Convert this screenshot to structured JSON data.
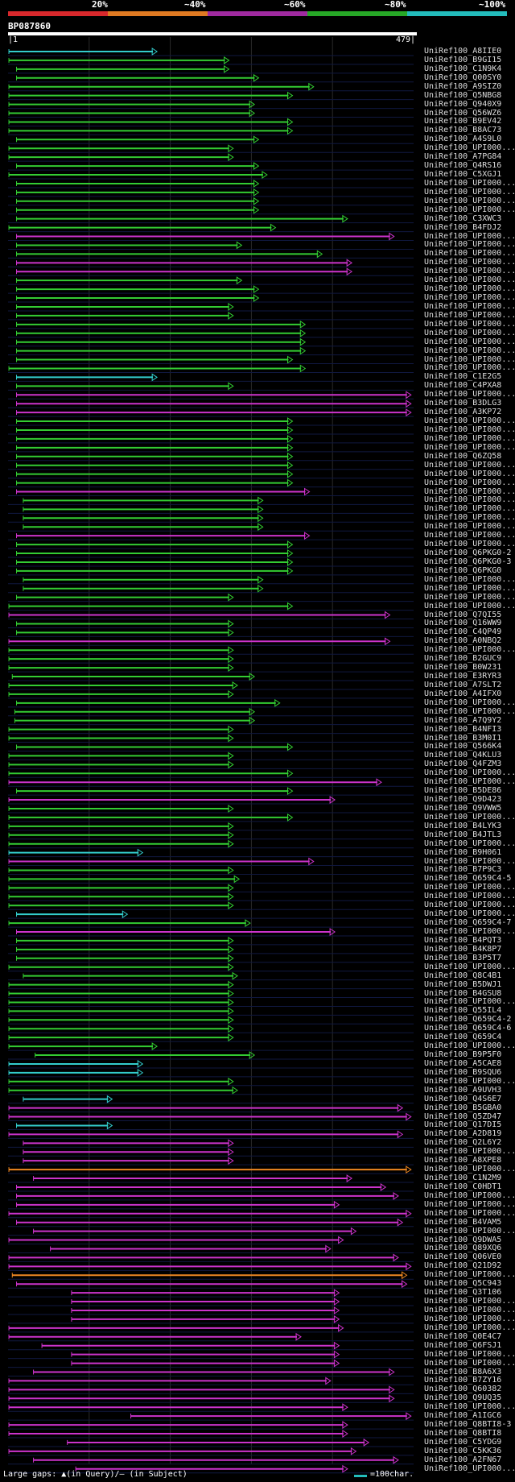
{
  "legend": {
    "labels": [
      "20%",
      "~40%",
      "~60%",
      "~80%",
      "~100%"
    ],
    "colors": [
      "#d8282c",
      "#e07a22",
      "#a02aa0",
      "#27a827",
      "#23bcbc"
    ]
  },
  "query": {
    "name": "BP087860",
    "start_label": "|1",
    "end_label": "479|",
    "length": 479
  },
  "footer": {
    "gaps_text": "Large gaps: ▲(in Query)/– (in Subject)",
    "scale_text": "=100char.",
    "scale_color": "#23bcbc"
  },
  "hits": [
    {
      "name": "UniRef100_A8IIE0",
      "start": 1,
      "end": 175,
      "color": "cyan"
    },
    {
      "name": "UniRef100_B9GI15",
      "start": 1,
      "end": 260,
      "color": "green"
    },
    {
      "name": "UniRef100_C1N9K4",
      "start": 10,
      "end": 260,
      "color": "green"
    },
    {
      "name": "UniRef100_Q00SY0",
      "start": 10,
      "end": 295,
      "color": "green"
    },
    {
      "name": "UniRef100_A9SIZ0",
      "start": 1,
      "end": 360,
      "color": "green"
    },
    {
      "name": "UniRef100_Q5NBG8",
      "start": 1,
      "end": 335,
      "color": "green"
    },
    {
      "name": "UniRef100_Q940X9",
      "start": 1,
      "end": 290,
      "color": "green"
    },
    {
      "name": "UniRef100_Q56WZ6",
      "start": 1,
      "end": 290,
      "color": "green"
    },
    {
      "name": "UniRef100_B9EV42",
      "start": 1,
      "end": 335,
      "color": "green"
    },
    {
      "name": "UniRef100_B8AC73",
      "start": 1,
      "end": 335,
      "color": "green"
    },
    {
      "name": "UniRef100_A4S9L0",
      "start": 10,
      "end": 295,
      "color": "green"
    },
    {
      "name": "UniRef100_UPI000...",
      "start": 1,
      "end": 265,
      "color": "green"
    },
    {
      "name": "UniRef100_A7PG84",
      "start": 1,
      "end": 265,
      "color": "green"
    },
    {
      "name": "UniRef100_Q4RS16",
      "start": 10,
      "end": 295,
      "color": "green"
    },
    {
      "name": "UniRef100_C5XGJ1",
      "start": 1,
      "end": 305,
      "color": "green"
    },
    {
      "name": "UniRef100_UPI000...",
      "start": 10,
      "end": 295,
      "color": "green"
    },
    {
      "name": "UniRef100_UPI000...",
      "start": 10,
      "end": 295,
      "color": "green"
    },
    {
      "name": "UniRef100_UPI000...",
      "start": 10,
      "end": 295,
      "color": "green"
    },
    {
      "name": "UniRef100_UPI000...",
      "start": 10,
      "end": 295,
      "color": "green"
    },
    {
      "name": "UniRef100_C3XWC3",
      "start": 10,
      "end": 400,
      "color": "green"
    },
    {
      "name": "UniRef100_B4FDJ2",
      "start": 1,
      "end": 315,
      "color": "green"
    },
    {
      "name": "UniRef100_UPI000...",
      "start": 10,
      "end": 455,
      "color": "magenta"
    },
    {
      "name": "UniRef100_UPI000...",
      "start": 10,
      "end": 275,
      "color": "green"
    },
    {
      "name": "UniRef100_UPI000...",
      "start": 10,
      "end": 370,
      "color": "green"
    },
    {
      "name": "UniRef100_UPI000...",
      "start": 10,
      "end": 405,
      "color": "magenta"
    },
    {
      "name": "UniRef100_UPI000...",
      "start": 10,
      "end": 405,
      "color": "magenta"
    },
    {
      "name": "UniRef100_UPI000...",
      "start": 10,
      "end": 275,
      "color": "green"
    },
    {
      "name": "UniRef100_UPI000...",
      "start": 10,
      "end": 295,
      "color": "green"
    },
    {
      "name": "UniRef100_UPI000...",
      "start": 10,
      "end": 295,
      "color": "green"
    },
    {
      "name": "UniRef100_UPI000...",
      "start": 10,
      "end": 265,
      "color": "green"
    },
    {
      "name": "UniRef100_UPI000...",
      "start": 10,
      "end": 265,
      "color": "green"
    },
    {
      "name": "UniRef100_UPI000...",
      "start": 10,
      "end": 350,
      "color": "green"
    },
    {
      "name": "UniRef100_UPI000...",
      "start": 10,
      "end": 350,
      "color": "green"
    },
    {
      "name": "UniRef100_UPI000...",
      "start": 10,
      "end": 350,
      "color": "green"
    },
    {
      "name": "UniRef100_UPI000...",
      "start": 10,
      "end": 350,
      "color": "green"
    },
    {
      "name": "UniRef100_UPI000...",
      "start": 10,
      "end": 335,
      "color": "green"
    },
    {
      "name": "UniRef100_UPI000...",
      "start": 1,
      "end": 350,
      "color": "green"
    },
    {
      "name": "UniRef100_C1E2G5",
      "start": 10,
      "end": 175,
      "color": "cyan"
    },
    {
      "name": "UniRef100_C4PXA8",
      "start": 10,
      "end": 265,
      "color": "green"
    },
    {
      "name": "UniRef100_UPI000...",
      "start": 10,
      "end": 475,
      "color": "magenta"
    },
    {
      "name": "UniRef100_B3DLG3",
      "start": 10,
      "end": 475,
      "color": "magenta"
    },
    {
      "name": "UniRef100_A3KP72",
      "start": 10,
      "end": 475,
      "color": "magenta"
    },
    {
      "name": "UniRef100_UPI000...",
      "start": 10,
      "end": 335,
      "color": "green"
    },
    {
      "name": "UniRef100_UPI000...",
      "start": 10,
      "end": 335,
      "color": "green"
    },
    {
      "name": "UniRef100_UPI000...",
      "start": 10,
      "end": 335,
      "color": "green"
    },
    {
      "name": "UniRef100_UPI000...",
      "start": 10,
      "end": 335,
      "color": "green"
    },
    {
      "name": "UniRef100_Q6ZQ58",
      "start": 10,
      "end": 335,
      "color": "green"
    },
    {
      "name": "UniRef100_UPI000...",
      "start": 10,
      "end": 335,
      "color": "green"
    },
    {
      "name": "UniRef100_UPI000...",
      "start": 10,
      "end": 335,
      "color": "green"
    },
    {
      "name": "UniRef100_UPI000...",
      "start": 10,
      "end": 335,
      "color": "green"
    },
    {
      "name": "UniRef100_UPI000...",
      "start": 10,
      "end": 355,
      "color": "magenta"
    },
    {
      "name": "UniRef100_UPI000...",
      "start": 18,
      "end": 300,
      "color": "green"
    },
    {
      "name": "UniRef100_UPI000...",
      "start": 18,
      "end": 300,
      "color": "green"
    },
    {
      "name": "UniRef100_UPI000...",
      "start": 18,
      "end": 300,
      "color": "green"
    },
    {
      "name": "UniRef100_UPI000...",
      "start": 18,
      "end": 300,
      "color": "green"
    },
    {
      "name": "UniRef100_UPI000...",
      "start": 10,
      "end": 355,
      "color": "magenta"
    },
    {
      "name": "UniRef100_UPI000...",
      "start": 10,
      "end": 335,
      "color": "green"
    },
    {
      "name": "UniRef100_Q6PKG0-2",
      "start": 10,
      "end": 335,
      "color": "green"
    },
    {
      "name": "UniRef100_Q6PKG0-3",
      "start": 10,
      "end": 335,
      "color": "green"
    },
    {
      "name": "UniRef100_Q6PKG0",
      "start": 10,
      "end": 335,
      "color": "green"
    },
    {
      "name": "UniRef100_UPI000...",
      "start": 18,
      "end": 300,
      "color": "green"
    },
    {
      "name": "UniRef100_UPI000...",
      "start": 18,
      "end": 300,
      "color": "green"
    },
    {
      "name": "UniRef100_UPI000...",
      "start": 10,
      "end": 265,
      "color": "green"
    },
    {
      "name": "UniRef100_UPI000...",
      "start": 1,
      "end": 335,
      "color": "green"
    },
    {
      "name": "UniRef100_Q7QI55",
      "start": 1,
      "end": 450,
      "color": "magenta"
    },
    {
      "name": "UniRef100_Q16WW9",
      "start": 10,
      "end": 265,
      "color": "green"
    },
    {
      "name": "UniRef100_C4QP49",
      "start": 10,
      "end": 265,
      "color": "green"
    },
    {
      "name": "UniRef100_A0NBQ2",
      "start": 1,
      "end": 450,
      "color": "magenta"
    },
    {
      "name": "UniRef100_UPI000...",
      "start": 1,
      "end": 265,
      "color": "green"
    },
    {
      "name": "UniRef100_B2GUC9",
      "start": 1,
      "end": 265,
      "color": "green"
    },
    {
      "name": "UniRef100_B0W231",
      "start": 1,
      "end": 265,
      "color": "green"
    },
    {
      "name": "UniRef100_E3RYR3",
      "start": 5,
      "end": 290,
      "color": "green"
    },
    {
      "name": "UniRef100_A7SLT2",
      "start": 1,
      "end": 270,
      "color": "green"
    },
    {
      "name": "UniRef100_A4IFX0",
      "start": 1,
      "end": 265,
      "color": "green"
    },
    {
      "name": "UniRef100_UPI000...",
      "start": 10,
      "end": 320,
      "color": "green"
    },
    {
      "name": "UniRef100_UPI000...",
      "start": 8,
      "end": 290,
      "color": "green"
    },
    {
      "name": "UniRef100_A7Q9Y2",
      "start": 8,
      "end": 290,
      "color": "green"
    },
    {
      "name": "UniRef100_B4NFI3",
      "start": 1,
      "end": 265,
      "color": "green"
    },
    {
      "name": "UniRef100_B3M0I1",
      "start": 1,
      "end": 265,
      "color": "green"
    },
    {
      "name": "UniRef100_Q566K4",
      "start": 10,
      "end": 335,
      "color": "green"
    },
    {
      "name": "UniRef100_Q4KLU3",
      "start": 1,
      "end": 265,
      "color": "green"
    },
    {
      "name": "UniRef100_Q4FZM3",
      "start": 1,
      "end": 265,
      "color": "green"
    },
    {
      "name": "UniRef100_UPI000...",
      "start": 1,
      "end": 335,
      "color": "green"
    },
    {
      "name": "UniRef100_UPI000...",
      "start": 1,
      "end": 440,
      "color": "magenta"
    },
    {
      "name": "UniRef100_B5DE86",
      "start": 10,
      "end": 335,
      "color": "green"
    },
    {
      "name": "UniRef100_Q9D423",
      "start": 1,
      "end": 385,
      "color": "magenta"
    },
    {
      "name": "UniRef100_Q9VWW5",
      "start": 1,
      "end": 265,
      "color": "green"
    },
    {
      "name": "UniRef100_UPI000...",
      "start": 1,
      "end": 335,
      "color": "green"
    },
    {
      "name": "UniRef100_B4LYK3",
      "start": 1,
      "end": 265,
      "color": "green"
    },
    {
      "name": "UniRef100_B4JTL3",
      "start": 1,
      "end": 265,
      "color": "green"
    },
    {
      "name": "UniRef100_UPI000...",
      "start": 1,
      "end": 265,
      "color": "green"
    },
    {
      "name": "UniRef100_B9H061",
      "start": 1,
      "end": 158,
      "color": "cyan"
    },
    {
      "name": "UniRef100_UPI000...",
      "start": 1,
      "end": 360,
      "color": "magenta"
    },
    {
      "name": "UniRef100_B7P9C3",
      "start": 1,
      "end": 265,
      "color": "green"
    },
    {
      "name": "UniRef100_Q659C4-5",
      "start": 1,
      "end": 272,
      "color": "green"
    },
    {
      "name": "UniRef100_UPI000...",
      "start": 1,
      "end": 265,
      "color": "green"
    },
    {
      "name": "UniRef100_UPI000...",
      "start": 1,
      "end": 265,
      "color": "green"
    },
    {
      "name": "UniRef100_UPI000...",
      "start": 1,
      "end": 265,
      "color": "green"
    },
    {
      "name": "UniRef100_UPI000...",
      "start": 10,
      "end": 140,
      "color": "cyan"
    },
    {
      "name": "UniRef100_Q659C4-7",
      "start": 1,
      "end": 285,
      "color": "green"
    },
    {
      "name": "UniRef100_UPI000...",
      "start": 10,
      "end": 385,
      "color": "magenta"
    },
    {
      "name": "UniRef100_B4PQT3",
      "start": 10,
      "end": 265,
      "color": "green"
    },
    {
      "name": "UniRef100_B4K8P7",
      "start": 10,
      "end": 265,
      "color": "green"
    },
    {
      "name": "UniRef100_B3P5T7",
      "start": 10,
      "end": 265,
      "color": "green"
    },
    {
      "name": "UniRef100_UPI000...",
      "start": 1,
      "end": 265,
      "color": "green"
    },
    {
      "name": "UniRef100_Q8C4B1",
      "start": 18,
      "end": 270,
      "color": "green"
    },
    {
      "name": "UniRef100_B5DWJ1",
      "start": 1,
      "end": 265,
      "color": "green"
    },
    {
      "name": "UniRef100_B4GSU8",
      "start": 1,
      "end": 265,
      "color": "green"
    },
    {
      "name": "UniRef100_UPI000...",
      "start": 1,
      "end": 265,
      "color": "green"
    },
    {
      "name": "UniRef100_Q55IL4",
      "start": 1,
      "end": 265,
      "color": "green"
    },
    {
      "name": "UniRef100_Q659C4-2",
      "start": 1,
      "end": 265,
      "color": "green"
    },
    {
      "name": "UniRef100_Q659C4-6",
      "start": 1,
      "end": 265,
      "color": "green"
    },
    {
      "name": "UniRef100_Q659C4",
      "start": 1,
      "end": 265,
      "color": "green"
    },
    {
      "name": "UniRef100_UPI000...",
      "start": 1,
      "end": 175,
      "color": "green"
    },
    {
      "name": "UniRef100_B9P5F0",
      "start": 32,
      "end": 290,
      "color": "green"
    },
    {
      "name": "UniRef100_A5CAE8",
      "start": 1,
      "end": 158,
      "color": "cyan"
    },
    {
      "name": "UniRef100_B9SQU6",
      "start": 1,
      "end": 158,
      "color": "cyan"
    },
    {
      "name": "UniRef100_UPI000...",
      "start": 1,
      "end": 265,
      "color": "green"
    },
    {
      "name": "UniRef100_A9UVH3",
      "start": 1,
      "end": 270,
      "color": "green"
    },
    {
      "name": "UniRef100_Q4S6E7",
      "start": 18,
      "end": 122,
      "color": "cyan"
    },
    {
      "name": "UniRef100_B5GBA0",
      "start": 1,
      "end": 465,
      "color": "magenta"
    },
    {
      "name": "UniRef100_Q5ZD47",
      "start": 1,
      "end": 475,
      "color": "magenta"
    },
    {
      "name": "UniRef100_Q17DI5",
      "start": 10,
      "end": 122,
      "color": "cyan"
    },
    {
      "name": "UniRef100_A2D819",
      "start": 1,
      "end": 465,
      "color": "magenta"
    },
    {
      "name": "UniRef100_Q2L6Y2",
      "start": 18,
      "end": 265,
      "color": "magenta"
    },
    {
      "name": "UniRef100_UPI000...",
      "start": 18,
      "end": 265,
      "color": "magenta"
    },
    {
      "name": "UniRef100_A8XPE8",
      "start": 18,
      "end": 265,
      "color": "magenta"
    },
    {
      "name": "UniRef100_UPI000...",
      "start": 1,
      "end": 475,
      "color": "orange"
    },
    {
      "name": "UniRef100_C1N2M9",
      "start": 30,
      "end": 405,
      "color": "magenta"
    },
    {
      "name": "UniRef100_C0HDT1",
      "start": 10,
      "end": 445,
      "color": "magenta"
    },
    {
      "name": "UniRef100_UPI000...",
      "start": 10,
      "end": 460,
      "color": "magenta"
    },
    {
      "name": "UniRef100_UPI000...",
      "start": 10,
      "end": 390,
      "color": "magenta"
    },
    {
      "name": "UniRef100_UPI000...",
      "start": 1,
      "end": 475,
      "color": "magenta"
    },
    {
      "name": "UniRef100_B4VAM5",
      "start": 10,
      "end": 465,
      "color": "magenta"
    },
    {
      "name": "UniRef100_UPI000...",
      "start": 30,
      "end": 410,
      "color": "magenta"
    },
    {
      "name": "UniRef100_Q9DWA5",
      "start": 1,
      "end": 395,
      "color": "magenta"
    },
    {
      "name": "UniRef100_Q89XQ6",
      "start": 50,
      "end": 380,
      "color": "magenta"
    },
    {
      "name": "UniRef100_Q06VE0",
      "start": 1,
      "end": 460,
      "color": "magenta"
    },
    {
      "name": "UniRef100_Q21D92",
      "start": 1,
      "end": 475,
      "color": "magenta"
    },
    {
      "name": "UniRef100_UPI000...",
      "start": 5,
      "end": 470,
      "color": "orange"
    },
    {
      "name": "UniRef100_Q5C943",
      "start": 10,
      "end": 470,
      "color": "magenta"
    },
    {
      "name": "UniRef100_Q3T106",
      "start": 75,
      "end": 390,
      "color": "magenta"
    },
    {
      "name": "UniRef100_UPI000...",
      "start": 75,
      "end": 390,
      "color": "magenta"
    },
    {
      "name": "UniRef100_UPI000...",
      "start": 75,
      "end": 390,
      "color": "magenta"
    },
    {
      "name": "UniRef100_UPI000...",
      "start": 75,
      "end": 390,
      "color": "magenta"
    },
    {
      "name": "UniRef100_UPI000...",
      "start": 1,
      "end": 395,
      "color": "magenta"
    },
    {
      "name": "UniRef100_Q0E4C7",
      "start": 1,
      "end": 345,
      "color": "magenta"
    },
    {
      "name": "UniRef100_Q6FSJ1",
      "start": 40,
      "end": 390,
      "color": "magenta"
    },
    {
      "name": "UniRef100_UPI000...",
      "start": 75,
      "end": 390,
      "color": "magenta"
    },
    {
      "name": "UniRef100_UPI000...",
      "start": 75,
      "end": 390,
      "color": "magenta"
    },
    {
      "name": "UniRef100_B8A6X3",
      "start": 30,
      "end": 455,
      "color": "magenta"
    },
    {
      "name": "UniRef100_B7ZY16",
      "start": 1,
      "end": 380,
      "color": "magenta"
    },
    {
      "name": "UniRef100_Q60382",
      "start": 1,
      "end": 455,
      "color": "magenta"
    },
    {
      "name": "UniRef100_Q9UQ35",
      "start": 1,
      "end": 455,
      "color": "magenta"
    },
    {
      "name": "UniRef100_UPI000...",
      "start": 1,
      "end": 400,
      "color": "magenta"
    },
    {
      "name": "UniRef100_A1IGC6",
      "start": 145,
      "end": 475,
      "color": "magenta"
    },
    {
      "name": "UniRef100_Q8BTI8-3",
      "start": 1,
      "end": 400,
      "color": "magenta"
    },
    {
      "name": "UniRef100_Q8BTI8",
      "start": 1,
      "end": 400,
      "color": "magenta"
    },
    {
      "name": "UniRef100_C5YDG9",
      "start": 70,
      "end": 425,
      "color": "magenta"
    },
    {
      "name": "UniRef100_C5KK36",
      "start": 1,
      "end": 410,
      "color": "magenta"
    },
    {
      "name": "UniRef100_A2FN67",
      "start": 30,
      "end": 460,
      "color": "magenta"
    },
    {
      "name": "UniRef100_UPI000...",
      "start": 80,
      "end": 400,
      "color": "magenta"
    }
  ]
}
